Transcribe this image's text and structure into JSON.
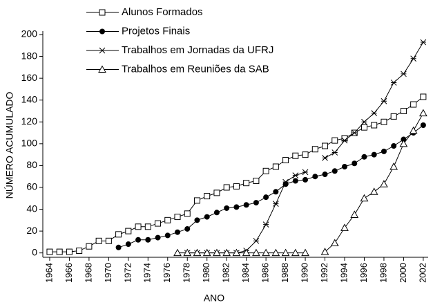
{
  "chart_data": {
    "type": "line",
    "xlabel": "ANO",
    "ylabel": "NÚMERO  ACUMULADO",
    "x": [
      1964,
      1965,
      1966,
      1967,
      1968,
      1969,
      1970,
      1971,
      1972,
      1973,
      1974,
      1975,
      1976,
      1977,
      1978,
      1979,
      1980,
      1981,
      1982,
      1983,
      1984,
      1985,
      1986,
      1987,
      1988,
      1989,
      1990,
      1991,
      1992,
      1993,
      1994,
      1995,
      1996,
      1997,
      1998,
      1999,
      2000,
      2001,
      2002
    ],
    "series": [
      {
        "name": "Alunos Formados",
        "color": "#000000",
        "marker": "square",
        "values": [
          1,
          1,
          1,
          2,
          6,
          11,
          11,
          17,
          20,
          24,
          24,
          27,
          30,
          33,
          36,
          48,
          52,
          55,
          60,
          61,
          64,
          66,
          75,
          79,
          85,
          89,
          90,
          95,
          98,
          103,
          105,
          110,
          115,
          117,
          120,
          125,
          130,
          136,
          143
        ]
      },
      {
        "name": "Projetos Finais",
        "color": "#000000",
        "marker": "circle",
        "values": [
          null,
          null,
          null,
          null,
          null,
          null,
          null,
          5,
          8,
          12,
          12,
          14,
          16,
          19,
          22,
          30,
          33,
          37,
          41,
          42,
          44,
          46,
          51,
          56,
          63,
          66,
          67,
          70,
          72,
          75,
          79,
          82,
          88,
          90,
          93,
          98,
          104,
          110,
          117
        ]
      },
      {
        "name": "Trabalhos em Jornadas da UFRJ",
        "color": "#000000",
        "marker": "asterisk",
        "values": [
          null,
          null,
          null,
          null,
          null,
          null,
          null,
          null,
          null,
          null,
          null,
          null,
          null,
          null,
          0,
          0,
          0,
          0,
          0,
          0,
          2,
          11,
          26,
          45,
          65,
          71,
          74,
          null,
          87,
          92,
          103,
          110,
          120,
          128,
          139,
          156,
          164,
          178,
          193
        ]
      },
      {
        "name": "Trabalhos em Reuniões da SAB",
        "color": "#000000",
        "marker": "triangle",
        "values": [
          null,
          null,
          null,
          null,
          null,
          null,
          null,
          null,
          null,
          null,
          null,
          null,
          null,
          0,
          0,
          0,
          0,
          0,
          0,
          0,
          0,
          0,
          0,
          0,
          0,
          0,
          0,
          null,
          1,
          9,
          23,
          35,
          50,
          56,
          63,
          79,
          100,
          112,
          128
        ]
      }
    ],
    "xlim": [
      1963.3,
      2002.5
    ],
    "xticks": [
      1964,
      1966,
      1968,
      1970,
      1972,
      1974,
      1976,
      1978,
      1980,
      1982,
      1984,
      1986,
      1988,
      1990,
      1992,
      1994,
      1996,
      1998,
      2000,
      2002
    ],
    "ylim": [
      -4,
      200
    ],
    "yticks": [
      0,
      20,
      40,
      60,
      80,
      100,
      120,
      140,
      160,
      180,
      200
    ],
    "grid": false
  }
}
